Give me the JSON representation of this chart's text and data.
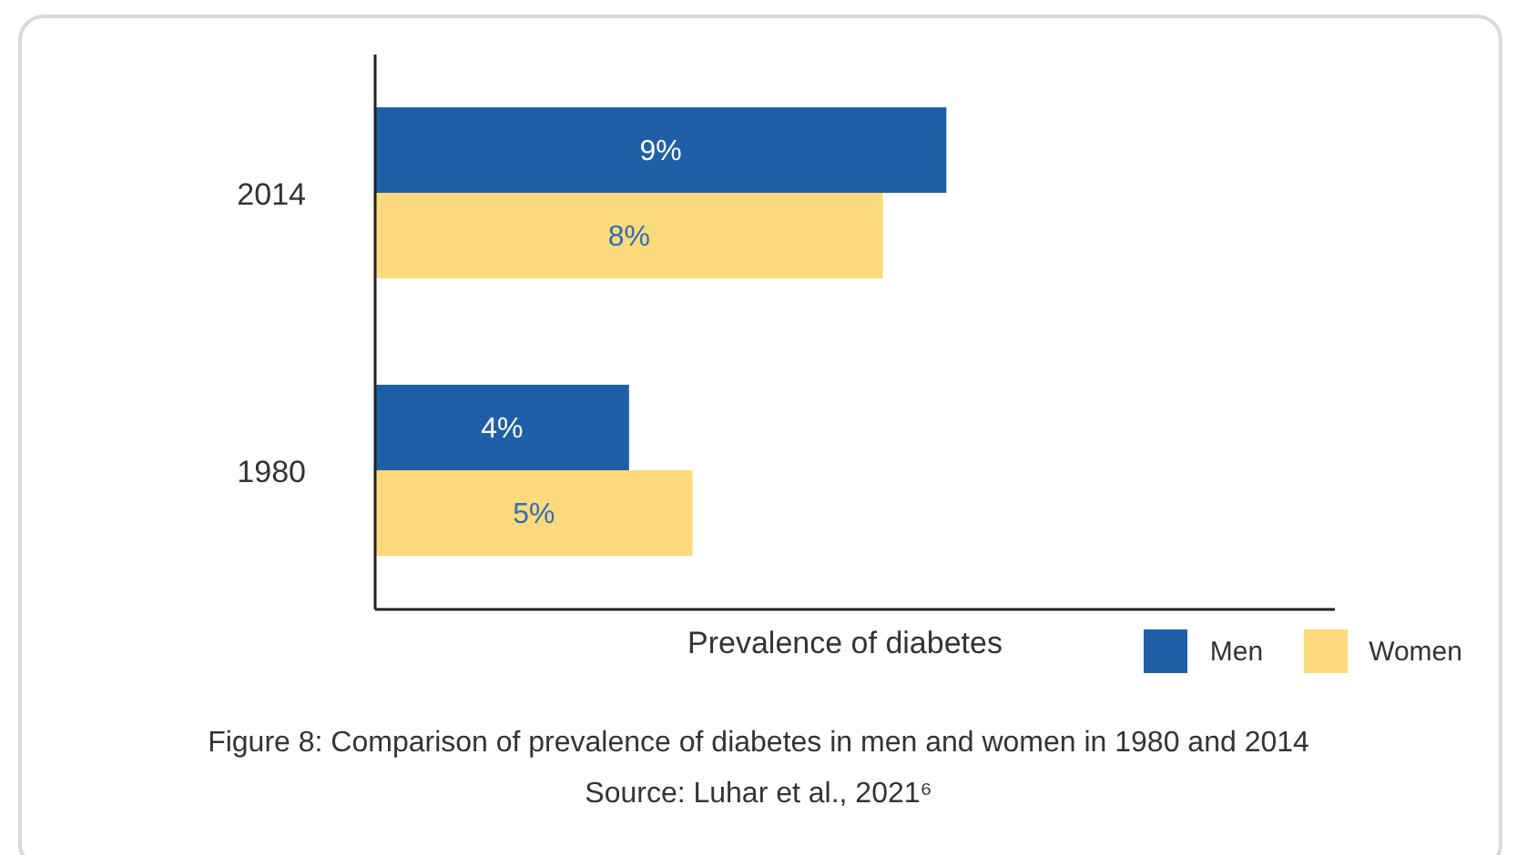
{
  "chart_data": {
    "type": "bar",
    "orientation": "horizontal",
    "title": "Figure 8: Comparison of prevalence of diabetes in men and women in 1980 and 2014",
    "xlabel": "Prevalence of diabetes",
    "annotations": [
      "Source: Luhar et al., 2021⁶"
    ],
    "categories": [
      "2014",
      "1980"
    ],
    "series": [
      {
        "name": "Men",
        "color": "#1f5fa6",
        "values": [
          9,
          4
        ],
        "value_labels": [
          "9%",
          "4%"
        ]
      },
      {
        "name": "Women",
        "color": "#fcd97a",
        "values": [
          8,
          5
        ],
        "value_labels": [
          "8%",
          "5%"
        ]
      }
    ],
    "tick_labels": "y",
    "grid": false,
    "legend": "bottom right"
  }
}
